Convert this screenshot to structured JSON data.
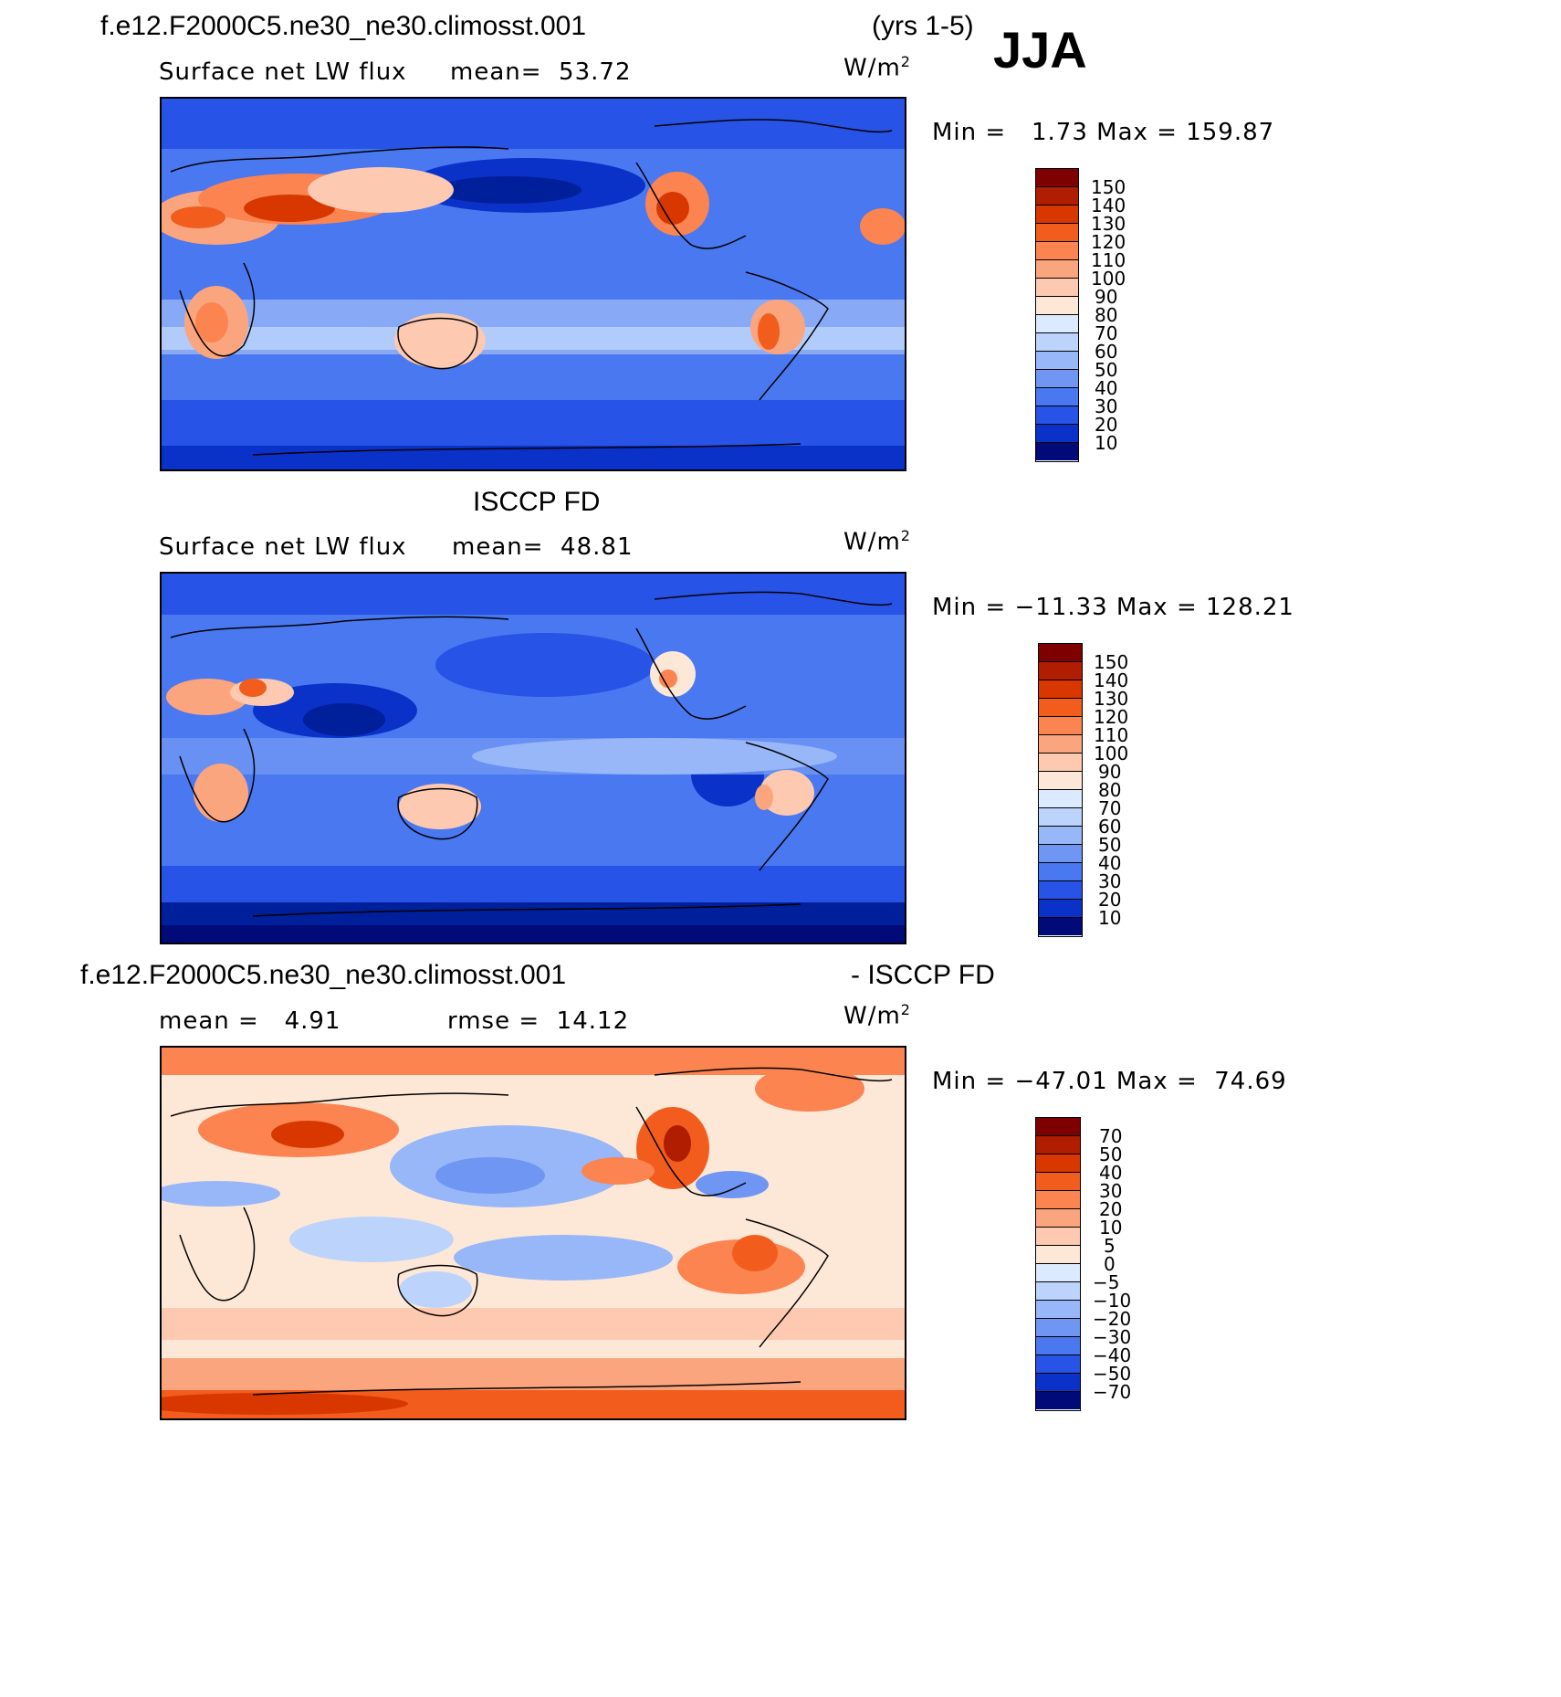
{
  "season": "JJA",
  "top_panel": {
    "case_title": "f.e12.F2000C5.ne30_ne30.climosst.001",
    "years": "(yrs 1-5)",
    "variable": "Surface net LW flux",
    "stat": "mean=  53.72",
    "units": "W/m",
    "units_sup": "2",
    "minmax": "Min =   1.73 Max = 159.87",
    "colorbar_levels": [
      "150",
      "140",
      "130",
      "120",
      "110",
      "100",
      "90",
      "80",
      "70",
      "60",
      "50",
      "40",
      "30",
      "20",
      "10"
    ]
  },
  "middle_panel": {
    "title": "ISCCP FD",
    "variable": "Surface net LW flux",
    "stat": "mean=  48.81",
    "units": "W/m",
    "units_sup": "2",
    "minmax": "Min = −11.33 Max = 128.21",
    "colorbar_levels": [
      "150",
      "140",
      "130",
      "120",
      "110",
      "100",
      "90",
      "80",
      "70",
      "60",
      "50",
      "40",
      "30",
      "20",
      "10"
    ]
  },
  "bottom_panel": {
    "title_left": "f.e12.F2000C5.ne30_ne30.climosst.001",
    "title_right": "- ISCCP FD",
    "stat_mean": "mean =   4.91",
    "stat_rmse": "rmse =  14.12",
    "units": "W/m",
    "units_sup": "2",
    "minmax": "Min = −47.01 Max =  74.69",
    "colorbar_levels": [
      "70",
      "50",
      "40",
      "30",
      "20",
      "10",
      "5",
      "0",
      "−5",
      "−10",
      "−20",
      "−30",
      "−40",
      "−50",
      "−70"
    ]
  },
  "colors": {
    "flux_scale": [
      "#7f0000",
      "#b01d00",
      "#d83800",
      "#f25d1e",
      "#fb8450",
      "#fba57e",
      "#fdc9b0",
      "#fde8d8",
      "#dceaff",
      "#bcd4fb",
      "#97b7f8",
      "#7096f4",
      "#4a78f0",
      "#2753e6",
      "#0a32c8",
      "#001f9a",
      "#000a78"
    ],
    "diff_scale": [
      "#7f0000",
      "#b01d00",
      "#d83800",
      "#f25d1e",
      "#fb8450",
      "#fba57e",
      "#fdc9b0",
      "#fde8d8",
      "#dceaff",
      "#bcd4fb",
      "#97b7f8",
      "#7096f4",
      "#4a78f0",
      "#2753e6",
      "#0a32c8",
      "#001f9a",
      "#000a78"
    ]
  }
}
